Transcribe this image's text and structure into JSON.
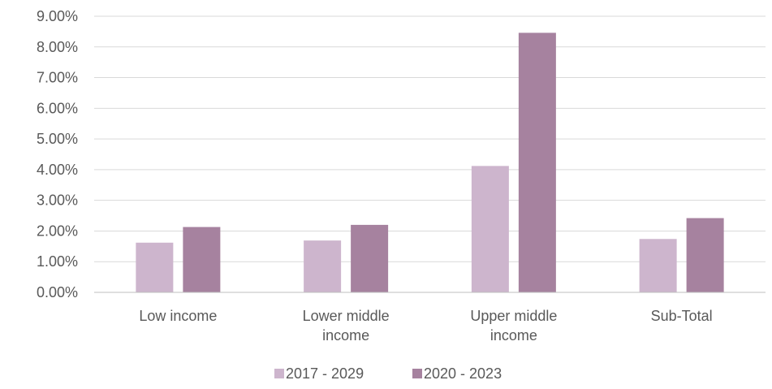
{
  "chart_data": {
    "type": "bar",
    "title": "",
    "xlabel": "",
    "ylabel": "",
    "categories": [
      [
        "Low income"
      ],
      [
        "Lower middle",
        "income"
      ],
      [
        "Upper middle",
        "income"
      ],
      [
        "Sub-Total"
      ]
    ],
    "series": [
      {
        "name": "2017 - 2029",
        "values": [
          1.62,
          1.69,
          4.12,
          1.74
        ],
        "color": "#cdb5cd"
      },
      {
        "name": "2020 - 2023",
        "values": [
          2.13,
          2.2,
          8.46,
          2.42
        ],
        "color": "#a6829f"
      }
    ],
    "ylim": [
      0,
      9
    ],
    "y_ticks": [
      "0.00%",
      "1.00%",
      "2.00%",
      "3.00%",
      "4.00%",
      "5.00%",
      "6.00%",
      "7.00%",
      "8.00%",
      "9.00%"
    ],
    "grid": true,
    "legend_position": "bottom",
    "colors": {
      "grid": "#d9d9d9",
      "axis": "#bfbfbf",
      "text": "#595959"
    }
  }
}
